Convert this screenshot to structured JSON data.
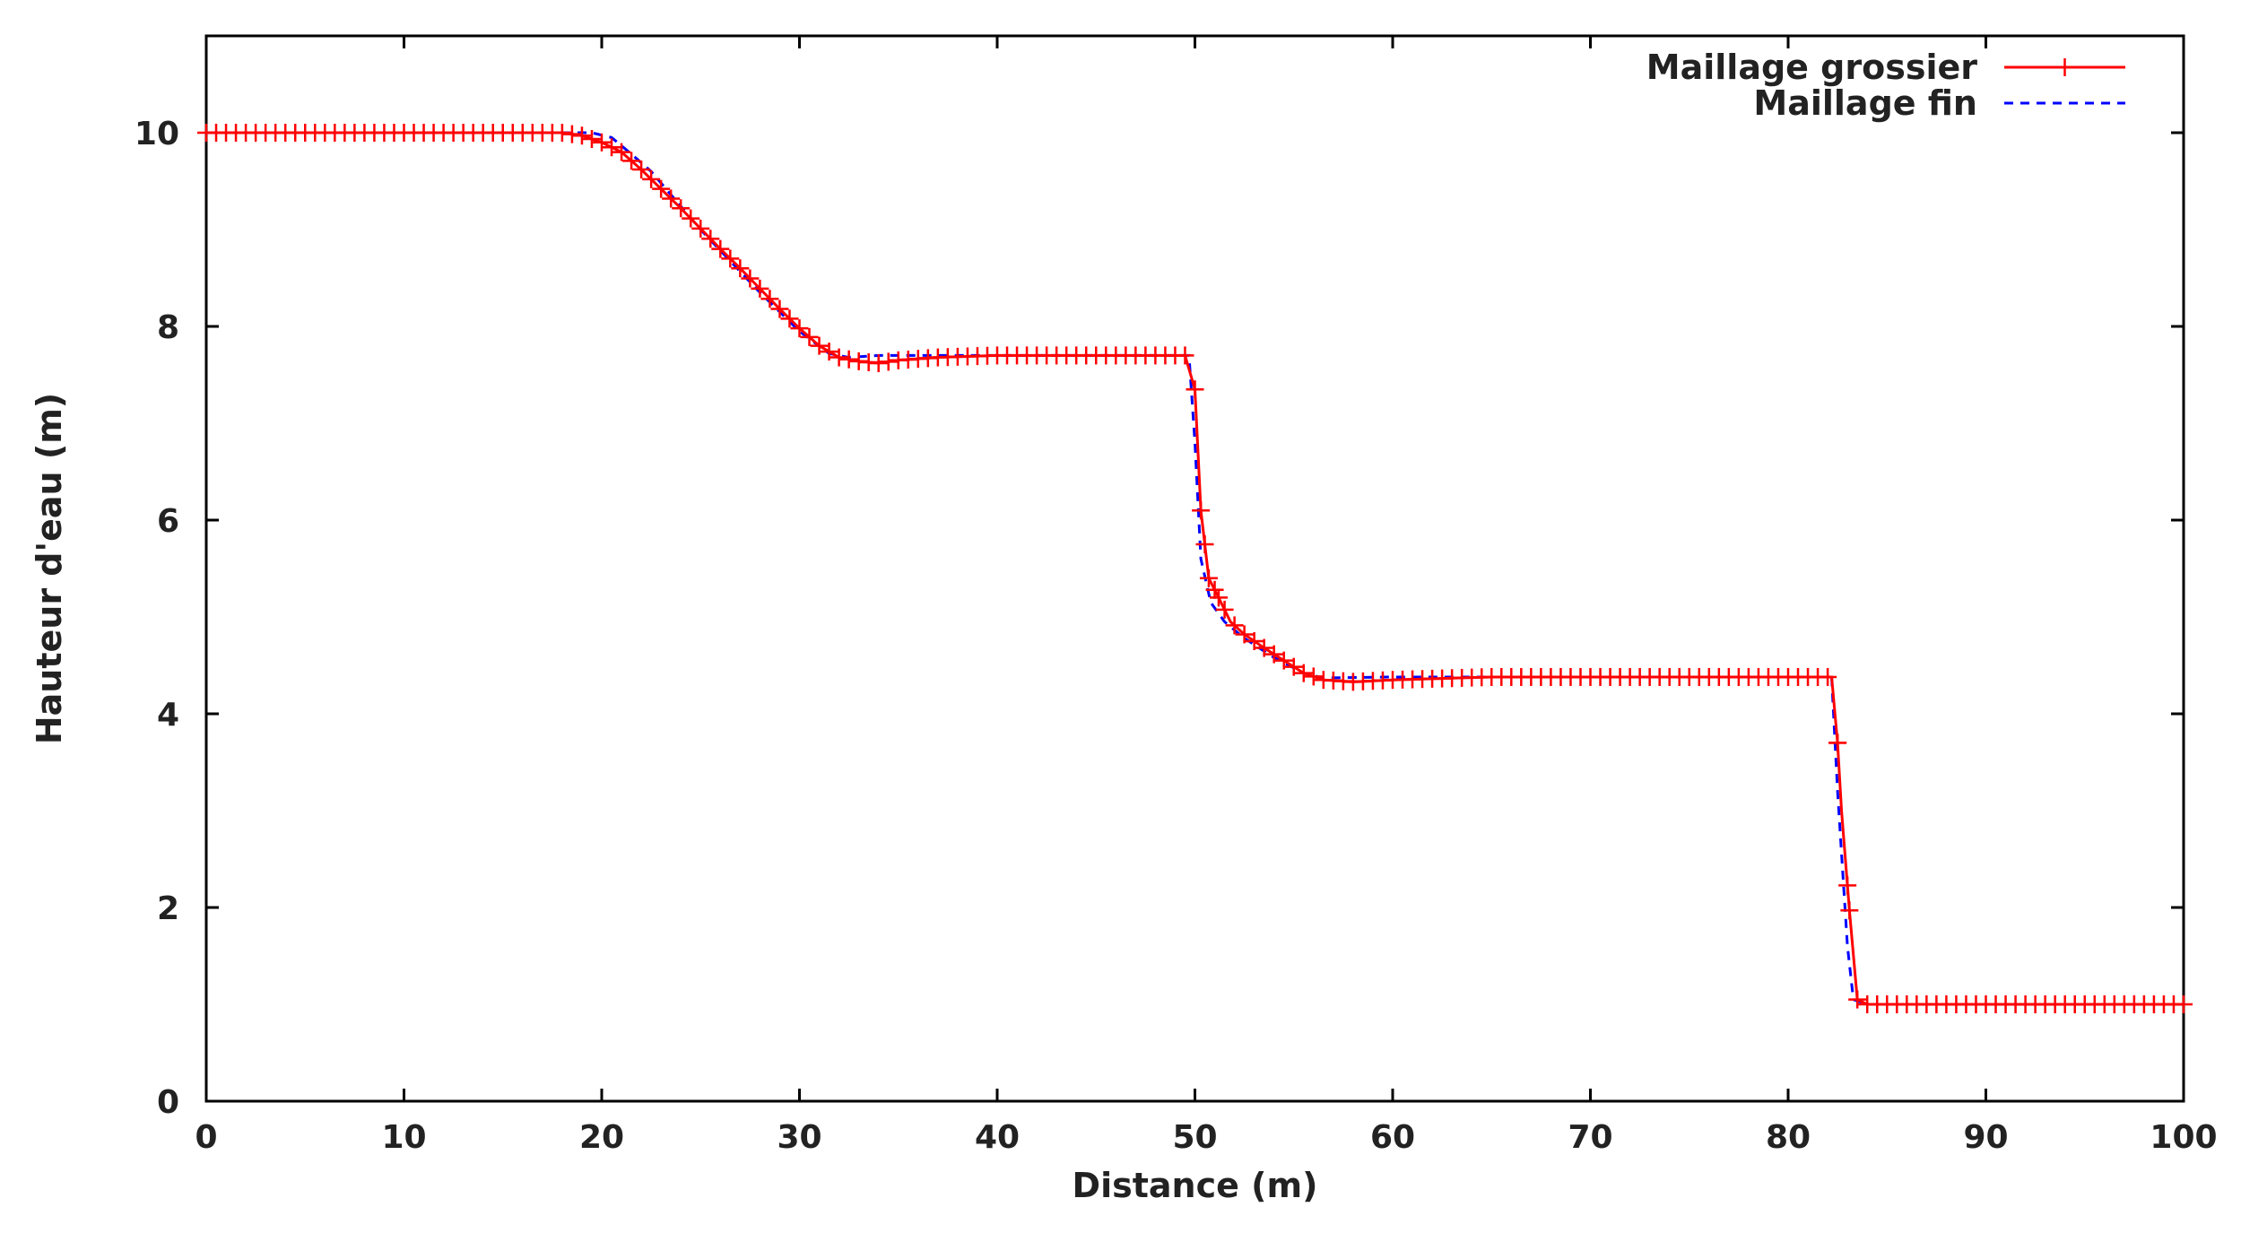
{
  "chart_data": {
    "type": "line",
    "xlabel": "Distance (m)",
    "ylabel": "Hauteur d'eau (m)",
    "xlim": [
      0,
      100
    ],
    "ylim": [
      0,
      11
    ],
    "xticks": [
      0,
      10,
      20,
      30,
      40,
      50,
      60,
      70,
      80,
      90,
      100
    ],
    "yticks": [
      0,
      2,
      4,
      6,
      8,
      10
    ],
    "grid": false,
    "legend_position": "top-right",
    "series": [
      {
        "name": "Maillage grossier",
        "color": "#ff0000",
        "style": "solid-with-plus-markers",
        "x": [
          0,
          5,
          10,
          15,
          18,
          19,
          20,
          21,
          22,
          23,
          24,
          25,
          26,
          27,
          28,
          29,
          30,
          31,
          32,
          33,
          34,
          35,
          37,
          40,
          45,
          49.5,
          50,
          50.3,
          50.7,
          51.2,
          51.8,
          52.5,
          53.5,
          54.5,
          55.5,
          56.5,
          58,
          60,
          65,
          70,
          75,
          80,
          82.2,
          82.5,
          82.7,
          83.1,
          83.5,
          84,
          85,
          90,
          95,
          100
        ],
        "y": [
          10,
          10,
          10,
          10,
          10,
          9.97,
          9.9,
          9.8,
          9.62,
          9.42,
          9.22,
          9.01,
          8.8,
          8.6,
          8.39,
          8.18,
          7.98,
          7.8,
          7.68,
          7.64,
          7.62,
          7.65,
          7.68,
          7.7,
          7.7,
          7.7,
          7.35,
          6.1,
          5.4,
          5.2,
          4.95,
          4.82,
          4.68,
          4.55,
          4.42,
          4.35,
          4.33,
          4.35,
          4.38,
          4.38,
          4.38,
          4.38,
          4.38,
          3.7,
          3.0,
          1.97,
          1.05,
          1.0,
          1.0,
          1.0,
          1.0,
          1.0
        ]
      },
      {
        "name": "Maillage fin",
        "color": "#0000ff",
        "style": "dashed",
        "x": [
          0,
          10,
          17,
          19.5,
          20.5,
          21.5,
          22.5,
          25,
          28,
          30,
          31.5,
          32.5,
          34,
          40,
          49.7,
          50,
          50.3,
          50.8,
          51.5,
          52.5,
          54,
          55.5,
          56.5,
          60,
          70,
          80,
          82.2,
          82.5,
          83,
          83.3,
          84,
          90,
          100
        ],
        "y": [
          10,
          10,
          10,
          10,
          9.95,
          9.78,
          9.6,
          9.0,
          8.35,
          7.95,
          7.72,
          7.68,
          7.7,
          7.7,
          7.7,
          6.8,
          5.6,
          5.15,
          4.95,
          4.78,
          4.58,
          4.42,
          4.37,
          4.38,
          4.38,
          4.38,
          4.38,
          3.2,
          1.6,
          1.05,
          1.0,
          1.0,
          1.0
        ]
      }
    ]
  }
}
